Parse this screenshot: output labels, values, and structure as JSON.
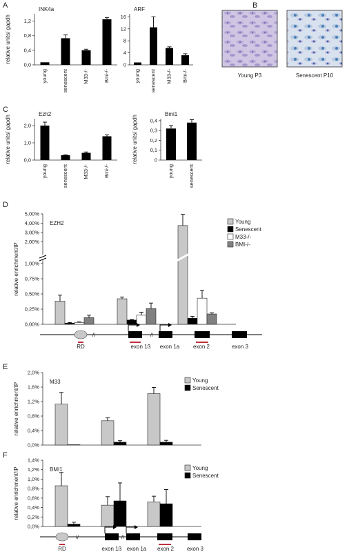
{
  "panels": {
    "A": "A",
    "B": "B",
    "C": "C",
    "D": "D",
    "E": "E",
    "F": "F"
  },
  "colors": {
    "black": "#000000",
    "light": "#c8c8c8",
    "dark": "#808080",
    "white": "#ffffff",
    "red": "#c0303c",
    "gray_oval": "#c8c8c8"
  },
  "micrographs": {
    "young_label": "Young P3",
    "senescent_label": "Senescent P10"
  },
  "gene_map": {
    "labels_d": [
      "RD",
      "exon 1ß",
      "exon 1a",
      "exon 2",
      "exon 3"
    ],
    "labels_f": [
      "RD",
      "exon 1ß",
      "exon 1a",
      "exon 2",
      "exon 3"
    ]
  },
  "chart_data": [
    {
      "id": "A1",
      "type": "bar",
      "title": "INK4a",
      "ylabel": "relative units/ gapdh",
      "categories": [
        "young",
        "senescent",
        "M33-/-",
        "Bmi-/-"
      ],
      "values": [
        0.07,
        0.73,
        0.4,
        1.25
      ],
      "errors": [
        0,
        0.09,
        0.03,
        0.05
      ],
      "ylim": [
        0,
        1.4
      ],
      "yticks": [
        0.0,
        0.4,
        0.8,
        1.2
      ],
      "ytick_labels": [
        "0,0",
        "0,4",
        "0,8",
        "1,2"
      ]
    },
    {
      "id": "A2",
      "type": "bar",
      "title": "ARF",
      "ylabel": "",
      "categories": [
        "young",
        "senescent",
        "M33-/-",
        "Bmi-/-"
      ],
      "values": [
        0.8,
        12.5,
        5.6,
        3.2
      ],
      "errors": [
        0,
        3.5,
        0.4,
        0.5
      ],
      "ylim": [
        0,
        17
      ],
      "yticks": [
        0,
        4,
        8,
        12,
        16
      ],
      "ytick_labels": [
        "0",
        "4",
        "8",
        "12",
        "16"
      ]
    },
    {
      "id": "C1",
      "type": "bar",
      "title": "Ezh2",
      "ylabel": "relative units/ gapdh",
      "categories": [
        "young",
        "senescent",
        "M33-/-",
        "Bmi-/-"
      ],
      "values": [
        2.0,
        0.28,
        0.42,
        1.38
      ],
      "errors": [
        0.2,
        0.03,
        0.05,
        0.08
      ],
      "ylim": [
        0,
        2.4
      ],
      "yticks": [
        0.0,
        1.0,
        2.0
      ],
      "ytick_labels": [
        "0,0",
        "1,0",
        "2,0"
      ]
    },
    {
      "id": "C2",
      "type": "bar",
      "title": "Bmi1",
      "ylabel": "relative units/ gapdh",
      "categories": [
        "young",
        "senescent"
      ],
      "values": [
        0.32,
        0.38
      ],
      "errors": [
        0.03,
        0.03
      ],
      "ylim": [
        0,
        0.42
      ],
      "yticks": [
        0,
        0.1,
        0.2,
        0.3,
        0.4
      ],
      "ytick_labels": [
        "0",
        "0,1",
        "0,2",
        "0,3",
        "0,4"
      ]
    },
    {
      "id": "D",
      "type": "bar",
      "title": "EZH2",
      "ylabel": "relative enrichment/IP",
      "groups": [
        "RD",
        "exon 1ß",
        "exon 2"
      ],
      "series": [
        {
          "name": "Young",
          "values": [
            0.38,
            0.42,
            3.75
          ],
          "errors": [
            0.1,
            0.03,
            1.2
          ]
        },
        {
          "name": "Senescent",
          "values": [
            0.02,
            0.07,
            0.1
          ],
          "errors": [
            0.01,
            0.01,
            0.03
          ]
        },
        {
          "name": "M33-/-",
          "values": [
            0.03,
            0.15,
            0.43
          ],
          "errors": [
            0.01,
            0.05,
            0.13
          ]
        },
        {
          "name": "BMI-/-",
          "values": [
            0.11,
            0.26,
            0.17
          ],
          "errors": [
            0.04,
            0.09,
            0.02
          ]
        }
      ],
      "legend": [
        "Young",
        "Senescent",
        "M33-/-",
        "BMI-/-"
      ],
      "yticks_low": [
        0.0,
        0.25,
        0.5,
        0.75,
        1.0
      ],
      "ytick_labels_low": [
        "0,00%",
        "0,25%",
        "0,50%",
        "0,75%",
        "1,00%"
      ],
      "yticks_high": [
        2.0,
        3.0,
        4.0,
        5.0
      ],
      "ytick_labels_high": [
        "2,00%",
        "3,00%",
        "4,00%",
        "5,00%"
      ],
      "axis_break": true
    },
    {
      "id": "E",
      "type": "bar",
      "title": "M33",
      "ylabel": "relative enrichment/IP",
      "groups": [
        "RD",
        "exon 1ß",
        "exon 2"
      ],
      "series": [
        {
          "name": "Young",
          "values": [
            1.13,
            0.67,
            1.42
          ],
          "errors": [
            0.32,
            0.08,
            0.17
          ]
        },
        {
          "name": "Senescent",
          "values": [
            0.01,
            0.08,
            0.08
          ],
          "errors": [
            0,
            0.04,
            0.05
          ]
        }
      ],
      "legend": [
        "Young",
        "Senescent"
      ],
      "ylim": [
        0,
        2.0
      ],
      "yticks": [
        0,
        0.4,
        0.8,
        1.2,
        1.6,
        2.0
      ],
      "ytick_labels": [
        "0,0%",
        "0,4%",
        "0,8%",
        "1,2%",
        "1,6%",
        "2,0%"
      ]
    },
    {
      "id": "F",
      "type": "bar",
      "title": "BMI1",
      "ylabel": "relative enrichment/IP",
      "groups": [
        "RD",
        "exon 1ß",
        "exon 2"
      ],
      "series": [
        {
          "name": "Young",
          "values": [
            0.86,
            0.45,
            0.52
          ],
          "errors": [
            0.28,
            0.18,
            0.12
          ]
        },
        {
          "name": "Senescent",
          "values": [
            0.05,
            0.54,
            0.48
          ],
          "errors": [
            0.04,
            0.38,
            0.3
          ]
        }
      ],
      "legend": [
        "Young",
        "Senescent"
      ],
      "ylim": [
        0,
        1.4
      ],
      "yticks": [
        0,
        0.2,
        0.4,
        0.6,
        0.8,
        1.0,
        1.2,
        1.4
      ],
      "ytick_labels": [
        "0,0%",
        "0,2%",
        "0,4%",
        "0,6%",
        "0,8%",
        "1,0%",
        "1,2%",
        "1,4%"
      ]
    }
  ]
}
